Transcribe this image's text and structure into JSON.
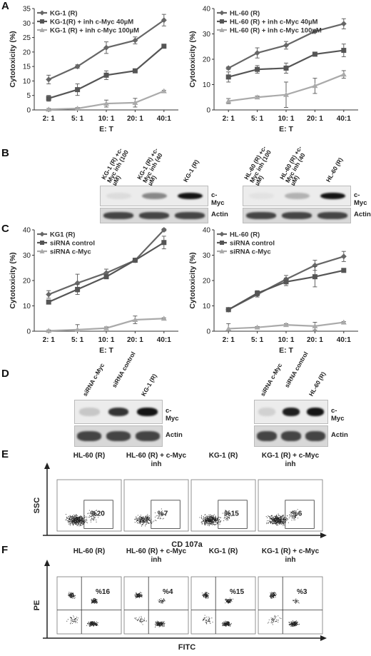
{
  "panels": {
    "A": "A",
    "B": "B",
    "C": "C",
    "D": "D",
    "E": "E",
    "F": "F"
  },
  "chart_data": [
    {
      "id": "A-left",
      "type": "line",
      "ylabel": "Cytotoxicity (%)",
      "xlabel": "E: T",
      "categories": [
        "2: 1",
        "5: 1",
        "10: 1",
        "20: 1",
        "40:1"
      ],
      "ylim": [
        0,
        35
      ],
      "yticks": [
        0,
        5,
        10,
        15,
        20,
        25,
        30,
        35
      ],
      "legend_position": "top-left",
      "series": [
        {
          "name": "KG-1 (R)",
          "color": "#666666",
          "marker": "diamond",
          "values": [
            10.5,
            15,
            21.5,
            24,
            31
          ],
          "errors": [
            1.5,
            0.6,
            2,
            1.2,
            2
          ]
        },
        {
          "name": "KG-1(R) + inh c-Myc 40µM",
          "color": "#555555",
          "marker": "square",
          "values": [
            4,
            7,
            12,
            13.5,
            22
          ],
          "errors": [
            1,
            2,
            1.5,
            0.5,
            0.5
          ]
        },
        {
          "name": "KG-1 (R) + inh c-Myc 100µM",
          "color": "#aaaaaa",
          "marker": "triangle",
          "values": [
            0.2,
            0.5,
            2.2,
            2.5,
            6.5
          ],
          "errors": [
            0.3,
            0.3,
            1.2,
            1.5,
            0.3
          ]
        }
      ]
    },
    {
      "id": "A-right",
      "type": "line",
      "ylabel": "Cytotoxicity (%)",
      "xlabel": "E: T",
      "categories": [
        "2: 1",
        "5: 1",
        "10: 1",
        "20: 1",
        "40:1"
      ],
      "ylim": [
        0,
        40
      ],
      "yticks": [
        0,
        10,
        20,
        30,
        40
      ],
      "legend_position": "top-left",
      "series": [
        {
          "name": "HL-60 (R)",
          "color": "#666666",
          "marker": "diamond",
          "values": [
            16.5,
            22.5,
            25.5,
            31,
            34
          ],
          "errors": [
            0.5,
            2,
            1.5,
            0.5,
            2
          ]
        },
        {
          "name": "HL-60 (R) + inh c-Myc 40µM",
          "color": "#555555",
          "marker": "square",
          "values": [
            13,
            16,
            16.5,
            22,
            23.5
          ],
          "errors": [
            2,
            1.5,
            2,
            0.5,
            2.5
          ]
        },
        {
          "name": "HL-60 (R) + inh c-Myc 100µM",
          "color": "#aaaaaa",
          "marker": "triangle",
          "values": [
            3.5,
            5,
            6,
            9.5,
            14
          ],
          "errors": [
            1,
            0.5,
            5,
            3,
            1.5
          ]
        }
      ]
    },
    {
      "id": "C-left",
      "type": "line",
      "ylabel": "Cytotoxicity (%)",
      "xlabel": "E: T",
      "categories": [
        "2: 1",
        "5: 1",
        "10: 1",
        "20: 1",
        "40:1"
      ],
      "ylim": [
        0,
        40
      ],
      "yticks": [
        0,
        10,
        20,
        30,
        40
      ],
      "legend_position": "top-left",
      "series": [
        {
          "name": "KG1 (R)",
          "color": "#666666",
          "marker": "diamond",
          "values": [
            14.5,
            19,
            23,
            28,
            40
          ],
          "errors": [
            1.5,
            3.5,
            1.5,
            0.5,
            0.5
          ]
        },
        {
          "name": "siRNA control",
          "color": "#555555",
          "marker": "square",
          "values": [
            11.5,
            16.5,
            21.5,
            28,
            35
          ],
          "errors": [
            0.5,
            2,
            0.5,
            0.5,
            2.5
          ]
        },
        {
          "name": "siRNA c-Myc",
          "color": "#aaaaaa",
          "marker": "triangle",
          "values": [
            0.2,
            0.6,
            1.2,
            4.5,
            5
          ],
          "errors": [
            0.3,
            2,
            0.5,
            1.5,
            0.3
          ]
        }
      ]
    },
    {
      "id": "C-right",
      "type": "line",
      "ylabel": "Cytotoxicity (%)",
      "xlabel": "E: T",
      "categories": [
        "2: 1",
        "5: 1",
        "10: 1",
        "20: 1",
        "40:1"
      ],
      "ylim": [
        0,
        40
      ],
      "yticks": [
        0,
        10,
        20,
        30,
        40
      ],
      "legend_position": "top-left",
      "series": [
        {
          "name": "HL-60 (R)",
          "color": "#666666",
          "marker": "diamond",
          "values": [
            8.5,
            14.5,
            20.5,
            26,
            29.5
          ],
          "errors": [
            0.5,
            1,
            1.5,
            2,
            2
          ]
        },
        {
          "name": "siRNA control",
          "color": "#555555",
          "marker": "square",
          "values": [
            8.5,
            15,
            19.5,
            21.5,
            24
          ],
          "errors": [
            0.5,
            1,
            1.5,
            4,
            0.5
          ]
        },
        {
          "name": "siRNA c-Myc",
          "color": "#aaaaaa",
          "marker": "triangle",
          "values": [
            1,
            1.5,
            2.5,
            2,
            3.5
          ],
          "errors": [
            2,
            0.3,
            0.5,
            1.5,
            0.3
          ]
        }
      ]
    }
  ],
  "blots": {
    "B_left": {
      "lanes": [
        "KG-1 (R) +c-Myc inh (100 µM)",
        "KG-1 (R) +c-Myc inh (40 µM)",
        "KG-1 (R)"
      ],
      "cmyc_intensity": [
        0.05,
        0.45,
        1.0
      ],
      "marker_top": "c-Myc",
      "marker_bottom": "Actin"
    },
    "B_right": {
      "lanes": [
        "HL-60 (R) +c-Myc inh (100 µM)",
        "HL-60 (R) +c-Myc inh (40 µM)",
        "HL-60 (R)"
      ],
      "cmyc_intensity": [
        0.02,
        0.25,
        1.0
      ],
      "marker_top": "c-Myc",
      "marker_bottom": "Actin"
    },
    "D_left": {
      "lanes": [
        "siRNA c-Myc",
        "siRNA control",
        "KG-1 (R)"
      ],
      "cmyc_intensity": [
        0.15,
        0.85,
        1.0
      ],
      "marker_top": "c-Myc",
      "marker_bottom": "Actin"
    },
    "D_right": {
      "lanes": [
        "siRNA c-Myc",
        "siRNA control",
        "HL-60 (R)"
      ],
      "cmyc_intensity": [
        0.1,
        0.95,
        1.0
      ],
      "marker_top": "c-Myc",
      "marker_bottom": "Actin"
    }
  },
  "flow_E": {
    "y_axis": "SSC",
    "x_axis": "CD 107a",
    "plots": [
      {
        "title": "HL-60 (R)",
        "percent": "%20"
      },
      {
        "title": "HL-60 (R) + c-Myc inh",
        "percent": "%7"
      },
      {
        "title": "KG-1 (R)",
        "percent": "%15"
      },
      {
        "title": "KG-1 (R) + c-Myc inh",
        "percent": "%6"
      }
    ]
  },
  "flow_F": {
    "y_axis": "PE",
    "x_axis": "FITC",
    "plots": [
      {
        "title": "HL-60 (R)",
        "percent": "%16"
      },
      {
        "title": "HL-60 (R) + c-Myc  inh",
        "percent": "%4"
      },
      {
        "title": "KG-1 (R)",
        "percent": "%15"
      },
      {
        "title": "KG-1 (R) + c-Myc inh",
        "percent": "%3"
      }
    ]
  }
}
